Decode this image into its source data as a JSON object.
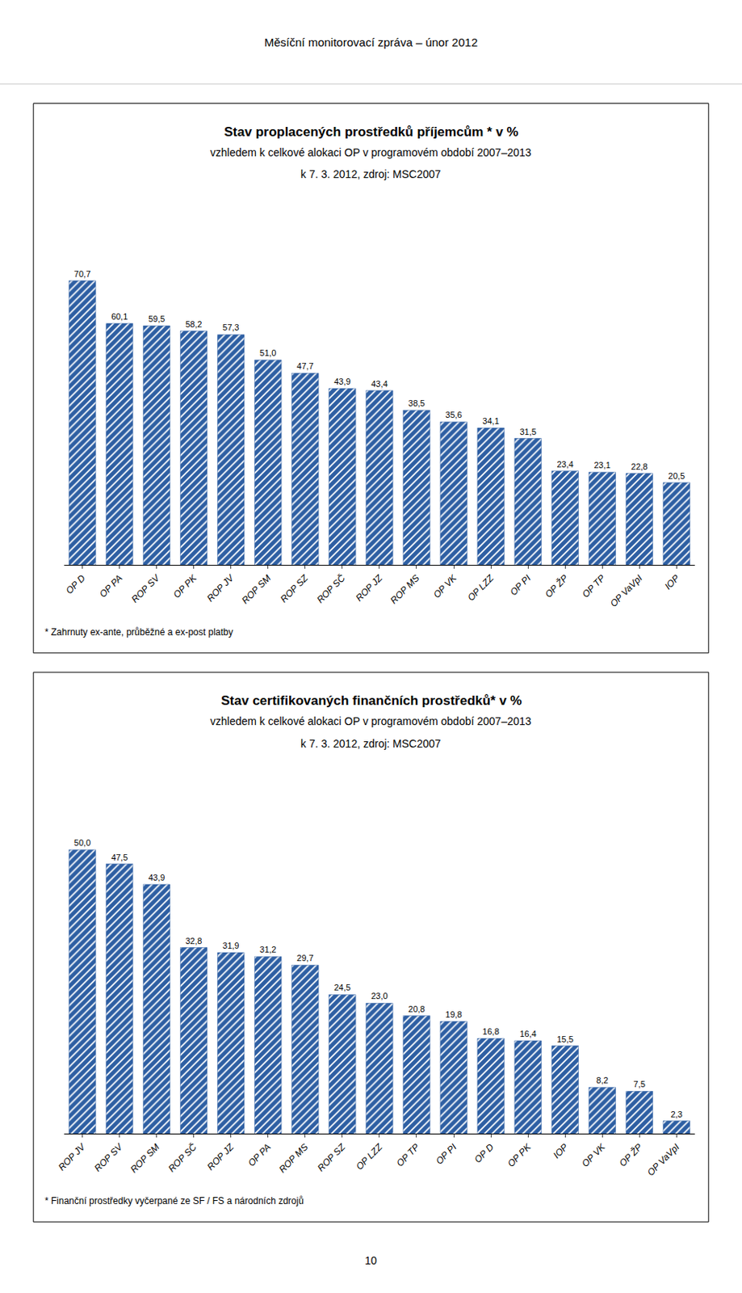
{
  "title": "Měsíční monitorovací zpráva – únor 2012",
  "annotations": [
    "10"
  ],
  "chart_data": [
    {
      "type": "bar",
      "title": "Stav proplacených prostředků příjemcům * v %",
      "subtitle": [
        "vzhledem k celkové alokaci OP v programovém období 2007–2013",
        "k 7. 3. 2012, zdroj: MSC2007"
      ],
      "categories": [
        "OP D",
        "OP PA",
        "ROP SV",
        "OP PK",
        "ROP JV",
        "ROP SM",
        "ROP SZ",
        "ROP SČ",
        "ROP JZ",
        "ROP MS",
        "OP VK",
        "OP LZZ",
        "OP PI",
        "OP ŽP",
        "OP TP",
        "OP VaVpI",
        "IOP"
      ],
      "values": [
        70.7,
        60.1,
        59.5,
        58.2,
        57.3,
        51.0,
        47.7,
        43.9,
        43.4,
        38.5,
        35.6,
        34.1,
        31.5,
        23.4,
        23.1,
        22.8,
        20.5
      ],
      "value_labels": [
        "70,7",
        "60,1",
        "59,5",
        "58,2",
        "57,3",
        "51,0",
        "47,7",
        "43,9",
        "43,4",
        "38,5",
        "35,6",
        "34,1",
        "31,5",
        "23,4",
        "23,1",
        "22,8",
        "20,5"
      ],
      "color": "#2E5FA3",
      "ylim": [
        0,
        82
      ],
      "data_labels": true,
      "tick_labels": "x",
      "grid": false,
      "annotations": [
        "* Zahrnuty ex-ante, průběžné a ex-post platby"
      ]
    },
    {
      "type": "bar",
      "title": "Stav certifikovaných finančních prostředků* v %",
      "subtitle": [
        "vzhledem k celkové alokaci OP v programovém období 2007–2013",
        "k 7. 3. 2012, zdroj: MSC2007"
      ],
      "categories": [
        "ROP JV",
        "ROP SV",
        "ROP SM",
        "ROP SČ",
        "ROP JZ",
        "OP PA",
        "ROP MS",
        "ROP SZ",
        "OP LZZ",
        "OP TP",
        "OP PI",
        "OP D",
        "OP PK",
        "IOP",
        "OP VK",
        "OP ŽP",
        "OP VaVpI"
      ],
      "values": [
        50.0,
        47.5,
        43.9,
        32.8,
        31.9,
        31.2,
        29.7,
        24.5,
        23.0,
        20.8,
        19.8,
        16.8,
        16.4,
        15.5,
        8.2,
        7.5,
        2.3
      ],
      "value_labels": [
        "50,0",
        "47,5",
        "43,9",
        "32,8",
        "31,9",
        "31,2",
        "29,7",
        "24,5",
        "23,0",
        "20,8",
        "19,8",
        "16,8",
        "16,4",
        "15,5",
        "8,2",
        "7,5",
        "2,3"
      ],
      "color": "#2E5FA3",
      "ylim": [
        0,
        58
      ],
      "data_labels": true,
      "tick_labels": "x",
      "grid": false,
      "annotations": [
        "* Finanční prostředky vyčerpané ze SF / FS a národních zdrojů"
      ]
    }
  ]
}
